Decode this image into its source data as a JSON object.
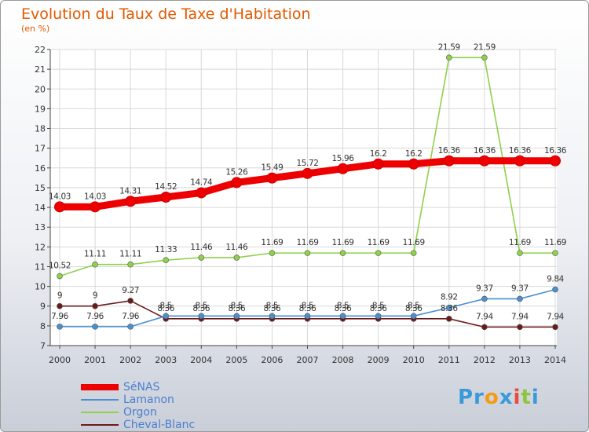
{
  "title": "Evolution du Taux de Taxe d'Habitation",
  "unit": "(en %)",
  "logo": {
    "parts": [
      "Pr",
      "o",
      "x",
      "i",
      "t",
      "i"
    ],
    "colors": [
      "#3a9ad9",
      "#f39c12",
      "#3a9ad9",
      "#e74c3c",
      "#8cc63f",
      "#3a9ad9"
    ]
  },
  "chart_data": {
    "type": "line",
    "x": [
      "2000",
      "2001",
      "2002",
      "2003",
      "2004",
      "2005",
      "2006",
      "2007",
      "2008",
      "2009",
      "2010",
      "2011",
      "2012",
      "2013",
      "2014"
    ],
    "ylim": [
      7,
      22
    ],
    "yticks": [
      "7",
      "8",
      "9",
      "10",
      "11",
      "12",
      "13",
      "14",
      "15",
      "16",
      "17",
      "18",
      "19",
      "20",
      "21",
      "22"
    ],
    "grid": true,
    "legend_position": "bottom-left",
    "series": [
      {
        "name": "SéNAS",
        "color": "#ee0000",
        "values": [
          14.03,
          14.03,
          14.31,
          14.52,
          14.74,
          15.26,
          15.49,
          15.72,
          15.96,
          16.2,
          16.2,
          16.36,
          16.36,
          16.36,
          16.36
        ],
        "labels": [
          "14.03",
          "14.03",
          "14.31",
          "14.52",
          "14.74",
          "15.26",
          "15.49",
          "15.72",
          "15.96",
          "16.2",
          "16.2",
          "16.36",
          "16.36",
          "16.36",
          "16.36"
        ]
      },
      {
        "name": "Lamanon",
        "color": "#4a90d0",
        "values": [
          7.96,
          7.96,
          7.96,
          8.5,
          8.5,
          8.5,
          8.5,
          8.5,
          8.5,
          8.5,
          8.5,
          8.92,
          9.37,
          9.37,
          9.84
        ],
        "labels": [
          "7.96",
          "7.96",
          "7.96",
          "8.5",
          "8.5",
          "8.5",
          "8.5",
          "8.5",
          "8.5",
          "8.5",
          "8.5",
          "8.92",
          "9.37",
          "9.37",
          "9.84"
        ]
      },
      {
        "name": "Orgon",
        "color": "#8ed14a",
        "values": [
          10.52,
          11.11,
          11.11,
          11.33,
          11.46,
          11.46,
          11.69,
          11.69,
          11.69,
          11.69,
          11.69,
          21.59,
          21.59,
          11.69,
          11.69
        ],
        "labels": [
          "10.52",
          "11.11",
          "11.11",
          "11.33",
          "11.46",
          "11.46",
          "11.69",
          "11.69",
          "11.69",
          "11.69",
          "11.69",
          "21.59",
          "21.59",
          "11.69",
          "11.69"
        ]
      },
      {
        "name": "Cheval-Blanc",
        "color": "#6b1a1a",
        "values": [
          9,
          9,
          9.27,
          8.36,
          8.36,
          8.36,
          8.36,
          8.36,
          8.36,
          8.36,
          8.36,
          8.36,
          7.94,
          7.94,
          7.94
        ],
        "labels": [
          "9",
          "9",
          "9.27",
          "8.36",
          "8.36",
          "8.36",
          "8.36",
          "8.36",
          "8.36",
          "8.36",
          "8.36",
          "8.36",
          "7.94",
          "7.94",
          "7.94"
        ]
      }
    ]
  }
}
